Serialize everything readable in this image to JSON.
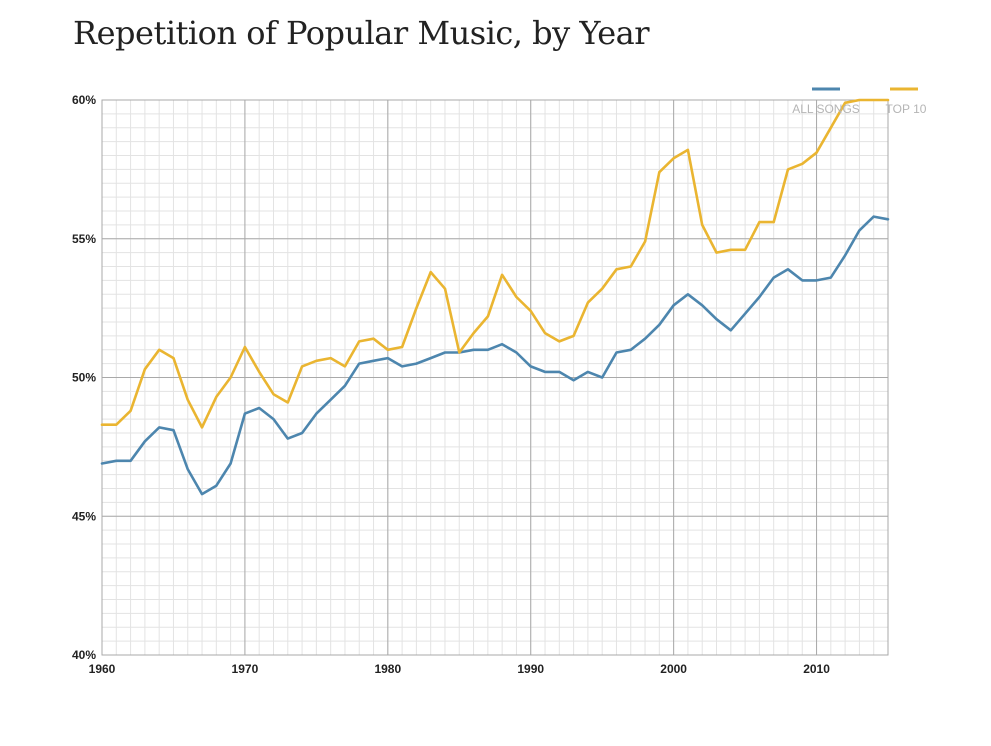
{
  "chart_data": {
    "type": "line",
    "title": "Repetition of Popular Music, by Year",
    "xlabel": "",
    "ylabel": "",
    "xlim": [
      1960,
      2015
    ],
    "ylim": [
      40,
      60
    ],
    "x_ticks": [
      1960,
      1970,
      1980,
      1990,
      2000,
      2010
    ],
    "y_ticks": [
      40,
      45,
      50,
      55,
      60
    ],
    "y_tick_labels": [
      "40%",
      "45%",
      "50%",
      "55%",
      "60%"
    ],
    "legend_position": "top-right",
    "grid": true,
    "x": [
      1960,
      1961,
      1962,
      1963,
      1964,
      1965,
      1966,
      1967,
      1968,
      1969,
      1970,
      1971,
      1972,
      1973,
      1974,
      1975,
      1976,
      1977,
      1978,
      1979,
      1980,
      1981,
      1982,
      1983,
      1984,
      1985,
      1986,
      1987,
      1988,
      1989,
      1990,
      1991,
      1992,
      1993,
      1994,
      1995,
      1996,
      1997,
      1998,
      1999,
      2000,
      2001,
      2002,
      2003,
      2004,
      2005,
      2006,
      2007,
      2008,
      2009,
      2010,
      2011,
      2012,
      2013,
      2014,
      2015
    ],
    "series": [
      {
        "name": "ALL SONGS",
        "color": "#4d86ae",
        "values": [
          46.9,
          47.0,
          47.0,
          47.7,
          48.2,
          48.1,
          46.7,
          45.8,
          46.1,
          46.9,
          48.7,
          48.9,
          48.5,
          47.8,
          48.0,
          48.7,
          49.2,
          49.7,
          50.5,
          50.6,
          50.7,
          50.4,
          50.5,
          50.7,
          50.9,
          50.9,
          51.0,
          51.0,
          51.2,
          50.9,
          50.4,
          50.2,
          50.2,
          49.9,
          50.2,
          50.0,
          50.9,
          51.0,
          51.4,
          51.9,
          52.6,
          53.0,
          52.6,
          52.1,
          51.7,
          52.3,
          52.9,
          53.6,
          53.9,
          53.5,
          53.5,
          53.6,
          54.4,
          55.3,
          55.8,
          55.7
        ]
      },
      {
        "name": "TOP 10",
        "color": "#eab531",
        "values": [
          48.3,
          48.3,
          48.8,
          50.3,
          51.0,
          50.7,
          49.2,
          48.2,
          49.3,
          50.0,
          51.1,
          50.2,
          49.4,
          49.1,
          50.4,
          50.6,
          50.7,
          50.4,
          51.3,
          51.4,
          51.0,
          51.1,
          52.5,
          53.8,
          53.2,
          50.9,
          51.6,
          52.2,
          53.7,
          52.9,
          52.4,
          51.6,
          51.3,
          51.5,
          52.7,
          53.2,
          53.9,
          54.0,
          54.9,
          57.4,
          57.9,
          58.2,
          55.5,
          54.5,
          54.6,
          54.6,
          55.6,
          55.6,
          57.5,
          57.7,
          58.1,
          59.0,
          59.9,
          61.1,
          61.6,
          61.2
        ]
      }
    ]
  }
}
